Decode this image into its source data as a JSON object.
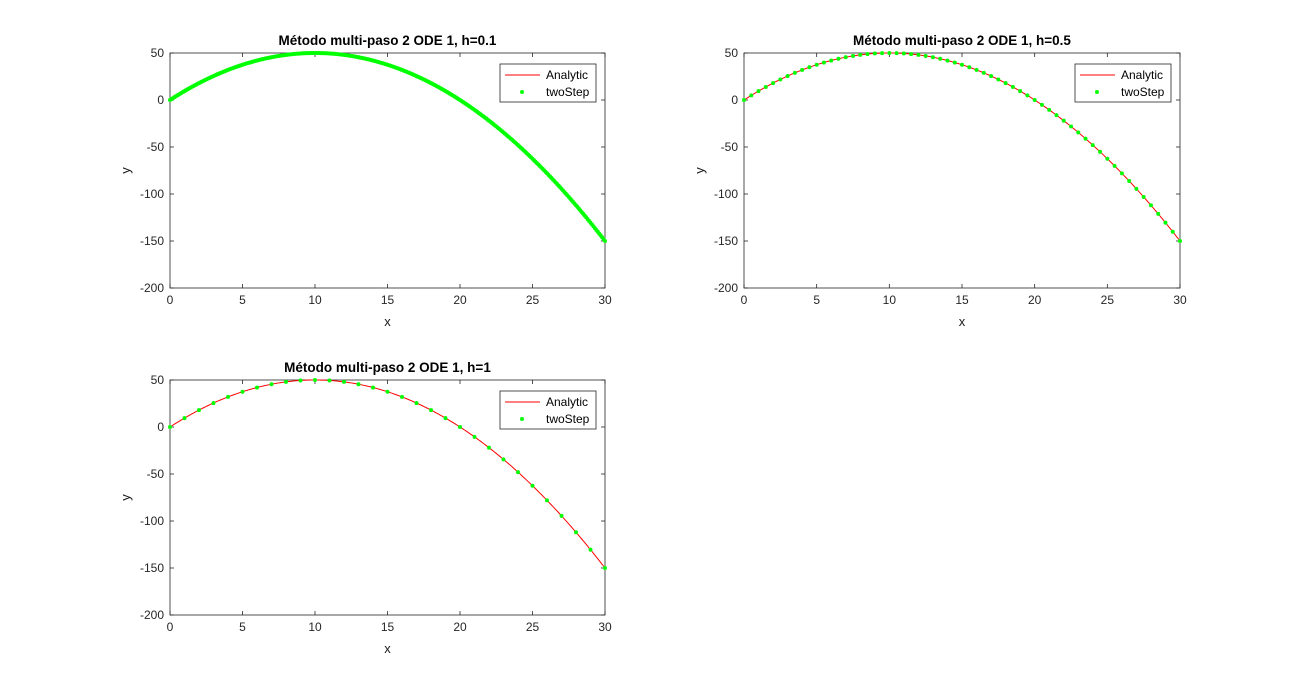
{
  "figure": {
    "background": "#ffffff"
  },
  "chart_data": [
    {
      "type": "line",
      "title": "Método multi-paso 2 ODE 1, h=0.1",
      "xlabel": "x",
      "ylabel": "y",
      "xlim": [
        0,
        30
      ],
      "ylim": [
        -200,
        50
      ],
      "xticks": [
        0,
        5,
        10,
        15,
        20,
        25,
        30
      ],
      "yticks": [
        -200,
        -150,
        -100,
        -50,
        0,
        50
      ],
      "xtick_labels": [
        "0",
        "5",
        "10",
        "15",
        "20",
        "25",
        "30"
      ],
      "ytick_labels": [
        "-200",
        "-150",
        "-100",
        "-50",
        "0",
        "50"
      ],
      "grid": false,
      "legend": {
        "location": "top-right",
        "entries": [
          "Analytic",
          "twoStep"
        ]
      },
      "series": [
        {
          "name": "Analytic",
          "style": "line",
          "color": "#ff0000",
          "function": "y = 10x - 0.5x^2",
          "x_range": [
            0,
            30
          ]
        },
        {
          "name": "twoStep",
          "style": "markers",
          "marker": "*",
          "color": "#00ff00",
          "function": "y = 10x - 0.5x^2",
          "x_range": [
            0,
            30
          ],
          "step": 0.1
        }
      ]
    },
    {
      "type": "line",
      "title": "Método multi-paso 2 ODE 1, h=0.5",
      "xlabel": "x",
      "ylabel": "y",
      "xlim": [
        0,
        30
      ],
      "ylim": [
        -200,
        50
      ],
      "xticks": [
        0,
        5,
        10,
        15,
        20,
        25,
        30
      ],
      "yticks": [
        -200,
        -150,
        -100,
        -50,
        0,
        50
      ],
      "xtick_labels": [
        "0",
        "5",
        "10",
        "15",
        "20",
        "25",
        "30"
      ],
      "ytick_labels": [
        "-200",
        "-150",
        "-100",
        "-50",
        "0",
        "50"
      ],
      "grid": false,
      "legend": {
        "location": "top-right",
        "entries": [
          "Analytic",
          "twoStep"
        ]
      },
      "series": [
        {
          "name": "Analytic",
          "style": "line",
          "color": "#ff0000",
          "function": "y = 10x - 0.5x^2",
          "x_range": [
            0,
            30
          ]
        },
        {
          "name": "twoStep",
          "style": "markers",
          "marker": "*",
          "color": "#00ff00",
          "function": "y = 10x - 0.5x^2",
          "x_range": [
            0,
            30
          ],
          "step": 0.5
        }
      ]
    },
    {
      "type": "line",
      "title": "Método multi-paso 2 ODE 1, h=1",
      "xlabel": "x",
      "ylabel": "y",
      "xlim": [
        0,
        30
      ],
      "ylim": [
        -200,
        50
      ],
      "xticks": [
        0,
        5,
        10,
        15,
        20,
        25,
        30
      ],
      "yticks": [
        -200,
        -150,
        -100,
        -50,
        0,
        50
      ],
      "xtick_labels": [
        "0",
        "5",
        "10",
        "15",
        "20",
        "25",
        "30"
      ],
      "ytick_labels": [
        "-200",
        "-150",
        "-100",
        "-50",
        "0",
        "50"
      ],
      "grid": false,
      "legend": {
        "location": "top-right",
        "entries": [
          "Analytic",
          "twoStep"
        ]
      },
      "series": [
        {
          "name": "Analytic",
          "style": "line",
          "color": "#ff0000",
          "function": "y = 10x - 0.5x^2",
          "x_range": [
            0,
            30
          ]
        },
        {
          "name": "twoStep",
          "style": "markers",
          "marker": "*",
          "color": "#00ff00",
          "function": "y = 10x - 0.5x^2",
          "x_range": [
            0,
            30
          ],
          "step": 1
        }
      ]
    }
  ]
}
